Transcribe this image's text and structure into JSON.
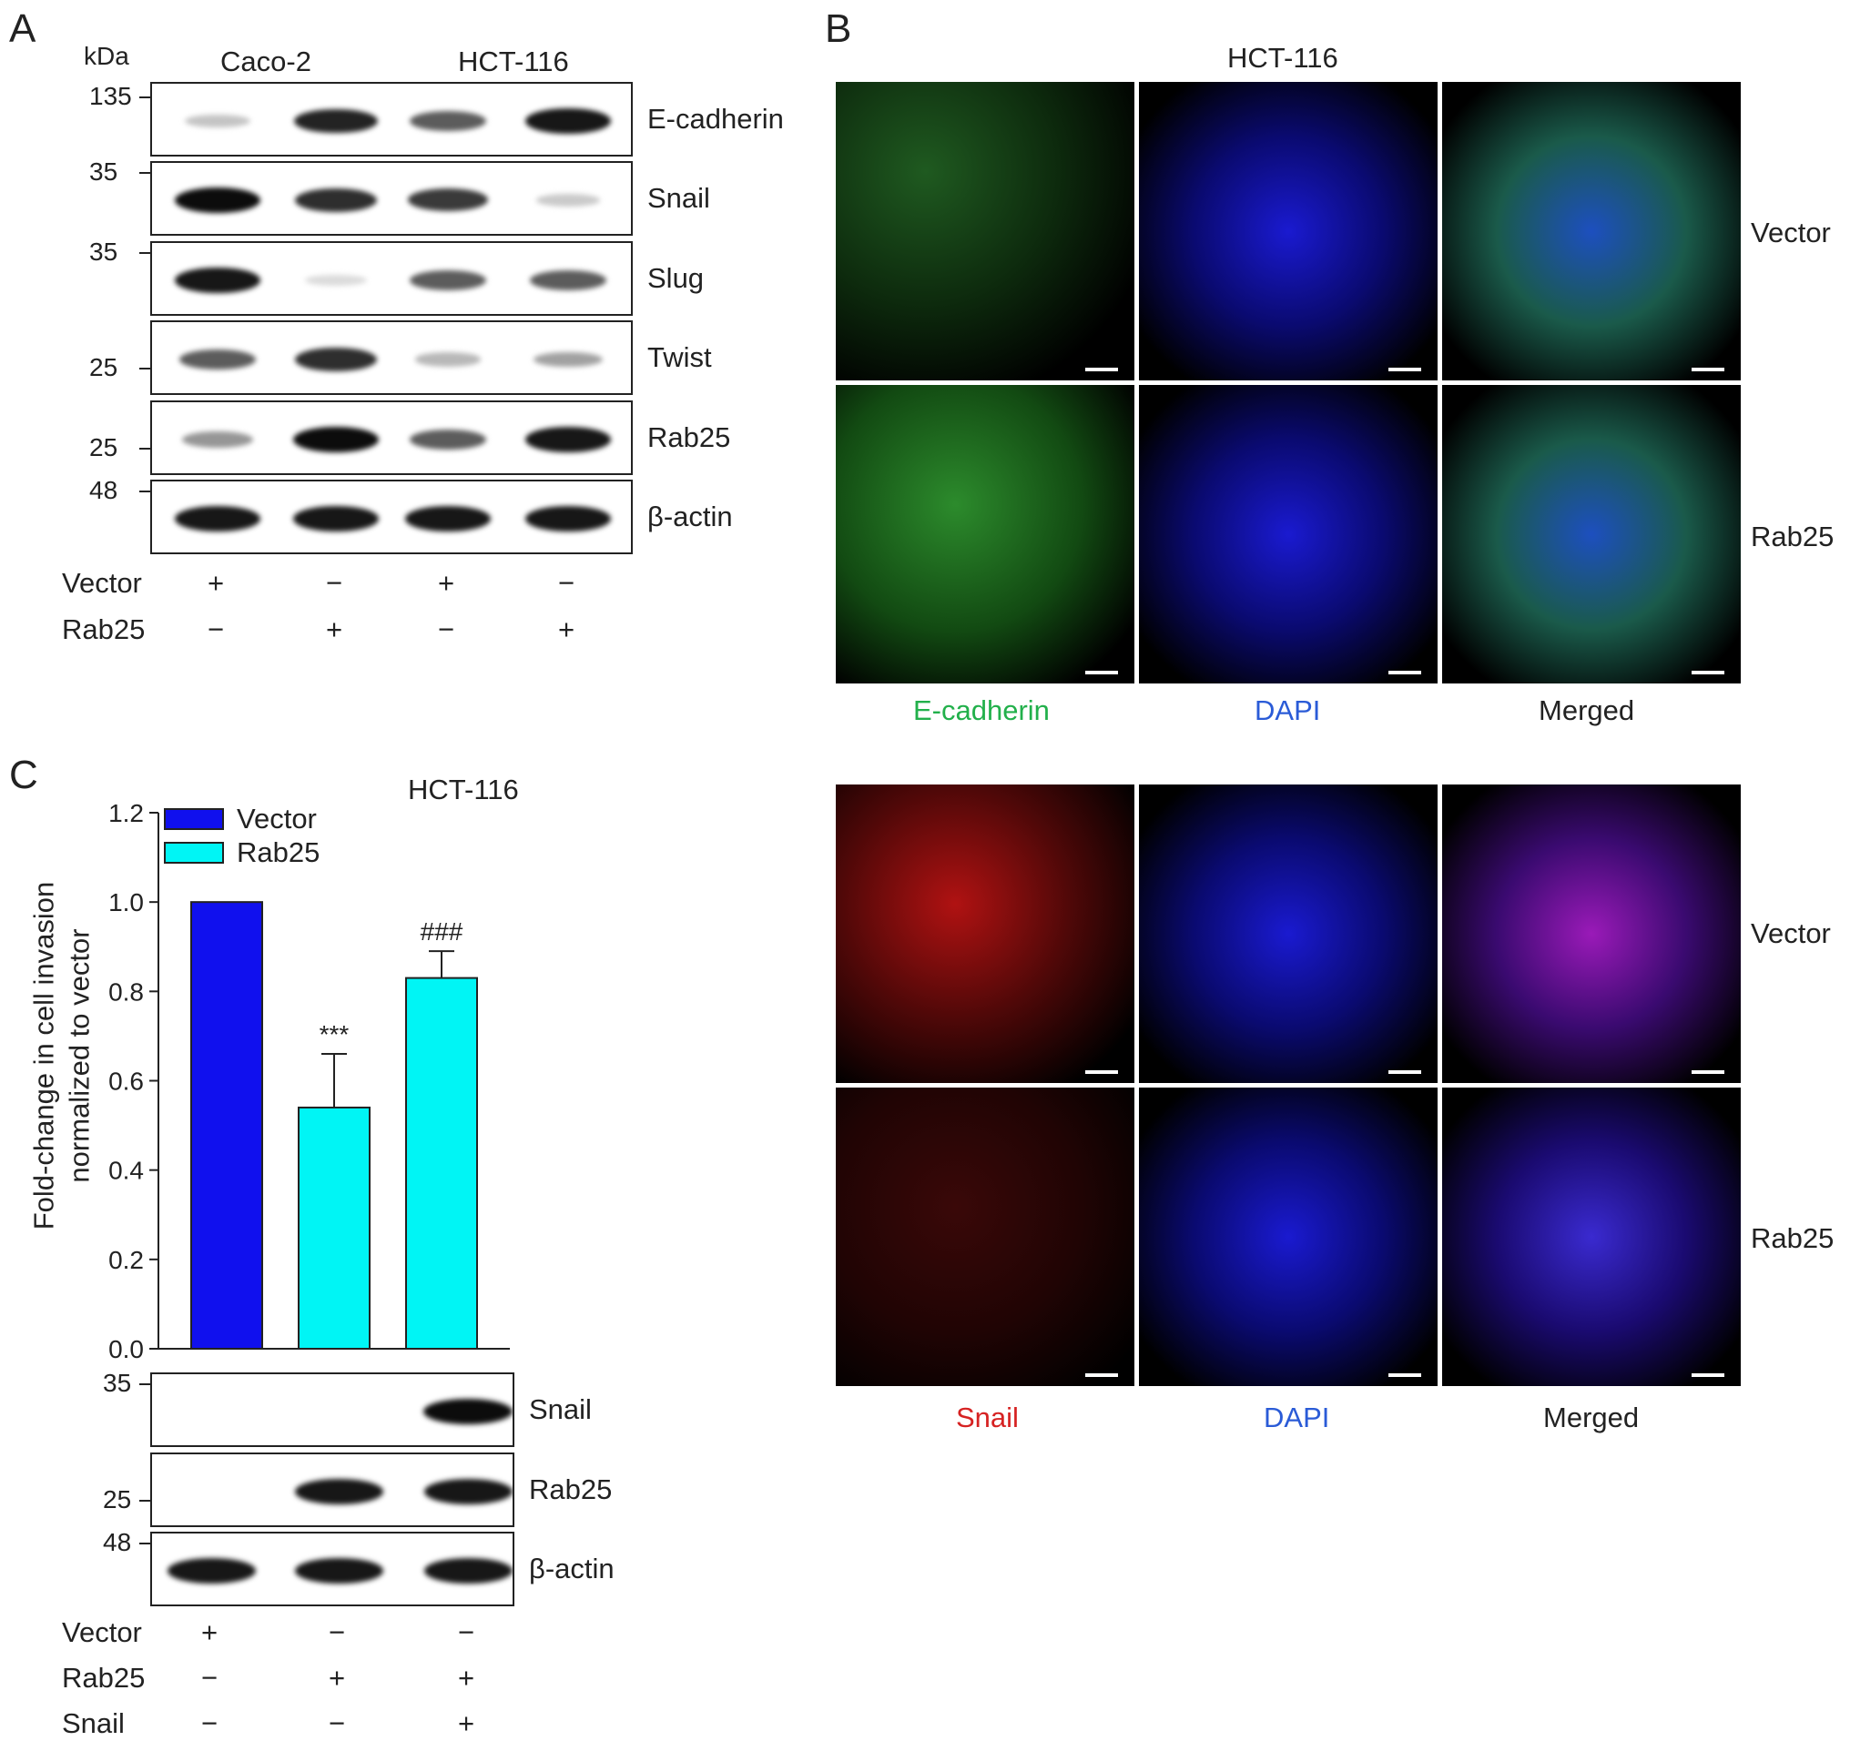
{
  "panels": {
    "a": "A",
    "b": "B",
    "c": "C"
  },
  "panel_a": {
    "kda_label": "kDa",
    "cell_lines": [
      "Caco-2",
      "HCT-116"
    ],
    "blots": [
      {
        "name": "E-cadherin",
        "mw": "135",
        "intensities": [
          0.15,
          0.85,
          0.6,
          0.9
        ]
      },
      {
        "name": "Snail",
        "mw": "35",
        "intensities": [
          0.95,
          0.8,
          0.75,
          0.12
        ]
      },
      {
        "name": "Slug",
        "mw": "35",
        "intensities": [
          0.9,
          0.05,
          0.6,
          0.6
        ]
      },
      {
        "name": "Twist",
        "mw": "25",
        "intensities": [
          0.6,
          0.8,
          0.2,
          0.3
        ]
      },
      {
        "name": "Rab25",
        "mw": "25",
        "intensities": [
          0.35,
          0.95,
          0.6,
          0.9
        ]
      },
      {
        "name": "β-actin",
        "mw": "48",
        "intensities": [
          0.9,
          0.9,
          0.9,
          0.9
        ]
      }
    ],
    "rows": [
      {
        "label": "Vector",
        "signs": [
          "+",
          "−",
          "+",
          "−"
        ]
      },
      {
        "label": "Rab25",
        "signs": [
          "−",
          "+",
          "−",
          "+"
        ]
      }
    ]
  },
  "panel_b": {
    "title": "HCT-116",
    "set1_columns": [
      "E-cadherin",
      "DAPI",
      "Merged"
    ],
    "set2_columns": [
      "Snail",
      "DAPI",
      "Merged"
    ],
    "rows": [
      "Vector",
      "Rab25",
      "Vector",
      "Rab25"
    ],
    "colors": {
      "ecadherin": "#22b04b",
      "dapi": "#2a5bd7",
      "snail": "#d62222",
      "merged": "#222222"
    }
  },
  "panel_c": {
    "title": "HCT-116",
    "ylabel_line1": "Fold-change in cell invasion",
    "ylabel_line2": "normalized to vector",
    "legend": [
      "Vector",
      "Rab25"
    ],
    "annotations": [
      "***",
      "###"
    ],
    "blots": [
      {
        "name": "Snail",
        "mw": "35",
        "intensities": [
          0.0,
          0.0,
          0.95
        ]
      },
      {
        "name": "Rab25",
        "mw": "25",
        "intensities": [
          0.0,
          0.9,
          0.9
        ]
      },
      {
        "name": "β-actin",
        "mw": "48",
        "intensities": [
          0.9,
          0.9,
          0.9
        ]
      }
    ],
    "rows": [
      {
        "label": "Vector",
        "signs": [
          "+",
          "−",
          "−"
        ]
      },
      {
        "label": "Rab25",
        "signs": [
          "−",
          "+",
          "+"
        ]
      },
      {
        "label": "Snail",
        "signs": [
          "−",
          "−",
          "+"
        ]
      }
    ]
  },
  "chart_data": {
    "type": "bar",
    "title": "HCT-116",
    "ylabel": "Fold-change in cell invasion normalized to vector",
    "ylim": [
      0,
      1.2
    ],
    "yticks": [
      "0.0",
      "0.2",
      "0.4",
      "0.6",
      "0.8",
      "1.0",
      "1.2"
    ],
    "bars": [
      {
        "series": "Vector",
        "value": 1.0,
        "error": 0.0,
        "annotation": "",
        "color": "#1010ee"
      },
      {
        "series": "Rab25",
        "value": 0.54,
        "error": 0.12,
        "annotation": "***",
        "color": "#00f5f5"
      },
      {
        "series": "Rab25",
        "value": 0.83,
        "error": 0.06,
        "annotation": "###",
        "color": "#00f5f5"
      }
    ],
    "grid": false,
    "legend_position": "top-left"
  }
}
